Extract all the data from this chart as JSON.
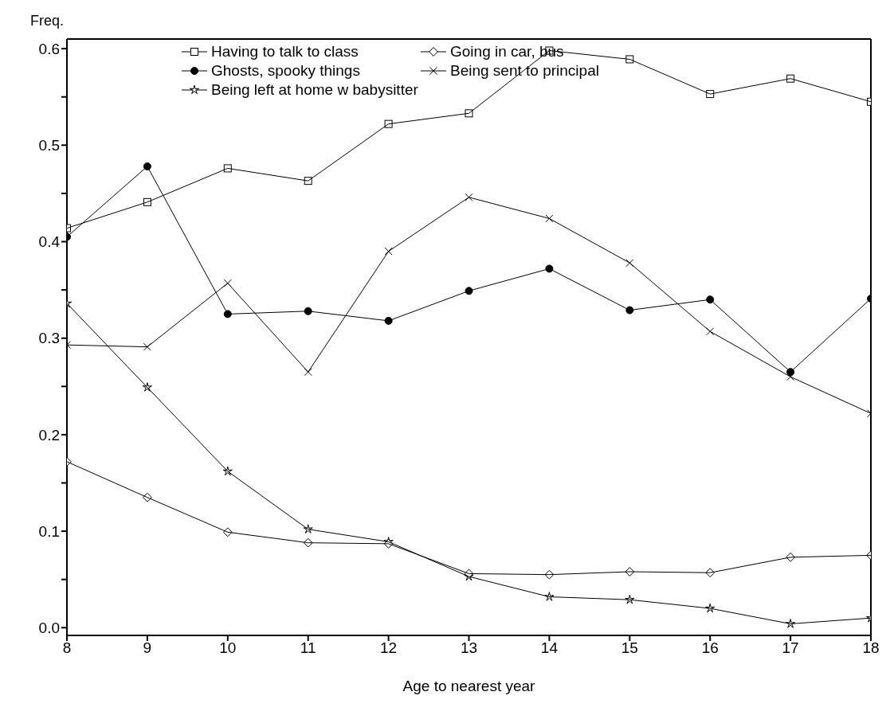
{
  "chart_data": {
    "type": "line",
    "xlabel": "Age to nearest year",
    "ylabel": "Freq.",
    "x": [
      8,
      9,
      10,
      11,
      12,
      13,
      14,
      15,
      16,
      17,
      18
    ],
    "xlim": [
      8,
      18
    ],
    "xticks": [
      8,
      9,
      10,
      11,
      12,
      13,
      14,
      15,
      16,
      17,
      18
    ],
    "ylim": [
      -0.008,
      0.61
    ],
    "yticks": [
      {
        "value": 0,
        "label": "0.0"
      },
      {
        "value": 0.05,
        "label": null
      },
      0.1,
      {
        "value": 0.15,
        "label": null
      },
      0.2,
      {
        "value": 0.25,
        "label": null
      },
      0.3,
      {
        "value": 0.35,
        "label": null
      },
      0.4,
      {
        "value": 0.45,
        "label": null
      },
      0.5,
      {
        "value": 0.55,
        "label": null
      },
      0.6
    ],
    "legend": "top",
    "grid": false,
    "line_style": "solid",
    "series": [
      {
        "name": "Having to talk to class",
        "color": "#000000",
        "marker": "square",
        "values": [
          0.414,
          0.441,
          0.476,
          0.463,
          0.522,
          0.533,
          0.598,
          0.589,
          0.553,
          0.569,
          0.545
        ]
      },
      {
        "name": "Going in car, bus",
        "color": "#000000",
        "marker": "diamond",
        "values": [
          0.172,
          0.135,
          0.099,
          0.088,
          0.087,
          0.056,
          0.055,
          0.058,
          0.057,
          0.073,
          0.075
        ]
      },
      {
        "name": "Ghosts, spooky things",
        "color": "#000000",
        "marker": "circle",
        "values": [
          0.405,
          0.478,
          0.325,
          0.328,
          0.318,
          0.349,
          0.372,
          0.329,
          0.34,
          0.265,
          0.341
        ]
      },
      {
        "name": "Being sent to principal",
        "color": "#000000",
        "marker": "cross",
        "values": [
          0.293,
          0.291,
          0.357,
          0.265,
          0.39,
          0.446,
          0.424,
          0.378,
          0.307,
          0.26,
          0.222
        ]
      },
      {
        "name": "Being left at home w babysitter",
        "color": "#000000",
        "marker": "star",
        "values": [
          0.336,
          0.249,
          0.162,
          0.102,
          0.089,
          0.053,
          0.032,
          0.029,
          0.02,
          0.004,
          0.01
        ]
      }
    ]
  }
}
